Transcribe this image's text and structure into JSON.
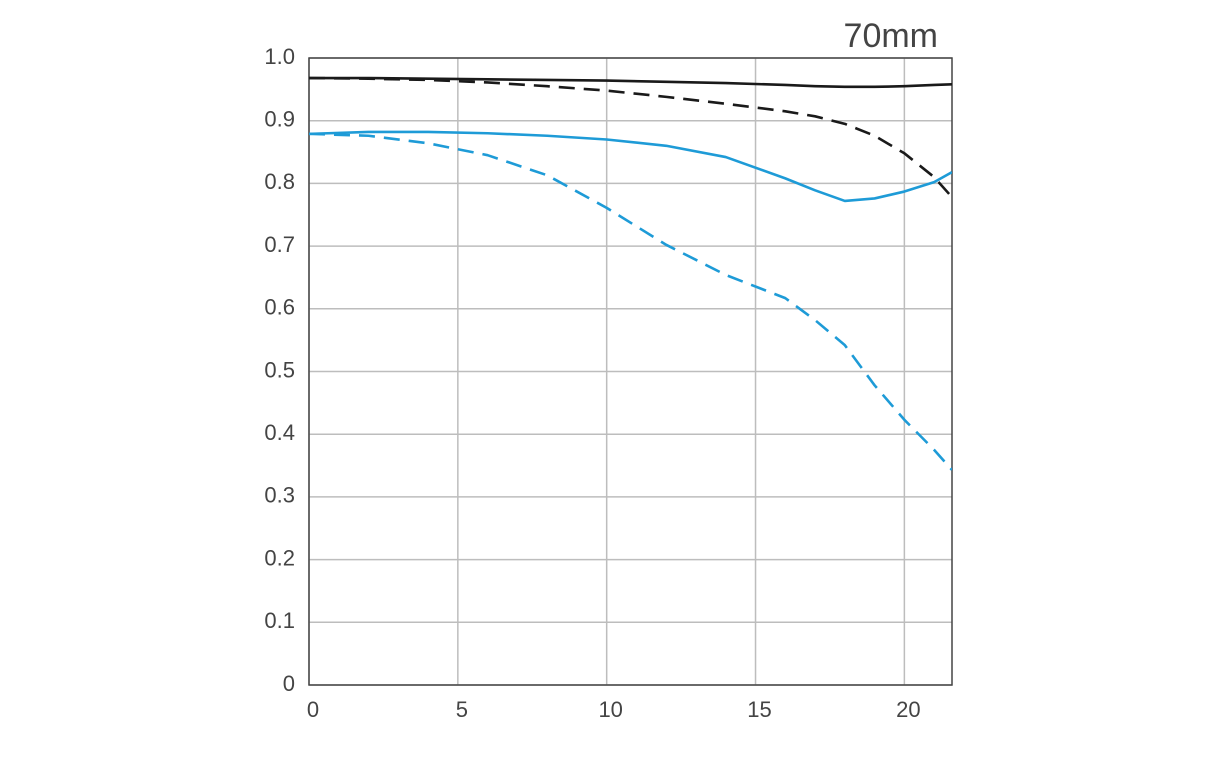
{
  "chart_data": {
    "type": "line",
    "title": "70mm",
    "x": [
      0,
      2,
      4,
      6,
      8,
      10,
      12,
      14,
      16,
      17,
      18,
      19,
      20,
      21,
      21.6
    ],
    "series": [
      {
        "color": "#1a1a1a",
        "dashed": false,
        "values": [
          0.968,
          0.968,
          0.967,
          0.966,
          0.965,
          0.964,
          0.962,
          0.96,
          0.957,
          0.955,
          0.954,
          0.954,
          0.955,
          0.957,
          0.958
        ]
      },
      {
        "color": "#1a1a1a",
        "dashed": true,
        "values": [
          0.968,
          0.967,
          0.965,
          0.961,
          0.955,
          0.948,
          0.938,
          0.927,
          0.915,
          0.907,
          0.895,
          0.876,
          0.848,
          0.81,
          0.778
        ]
      },
      {
        "color": "#1e9bd7",
        "dashed": false,
        "values": [
          0.879,
          0.882,
          0.882,
          0.88,
          0.876,
          0.87,
          0.86,
          0.842,
          0.808,
          0.789,
          0.772,
          0.776,
          0.787,
          0.802,
          0.818
        ]
      },
      {
        "color": "#1e9bd7",
        "dashed": true,
        "values": [
          0.879,
          0.876,
          0.864,
          0.845,
          0.813,
          0.761,
          0.702,
          0.654,
          0.617,
          0.582,
          0.542,
          0.478,
          0.423,
          0.375,
          0.343
        ]
      }
    ],
    "xlim": [
      0,
      21.6
    ],
    "xticks": [
      0,
      5,
      10,
      15,
      20
    ],
    "ylim": [
      0,
      1
    ],
    "yticks": [
      0,
      0.1,
      0.2,
      0.3,
      0.4,
      0.5,
      0.6,
      0.7,
      0.8,
      0.9,
      {
        "value": 1,
        "label": "1.0"
      }
    ],
    "grid": true
  }
}
